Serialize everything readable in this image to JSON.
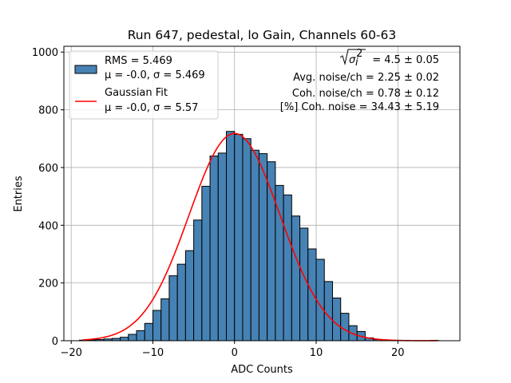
{
  "chart_data": {
    "type": "bar",
    "title": "Run 647, pedestal, lo Gain, Channels 60-63",
    "xlabel": "ADC Counts",
    "ylabel": "Entries",
    "xlim": [
      -20.9,
      27.6
    ],
    "ylim": [
      0,
      1020
    ],
    "x_ticks": [
      -20,
      -10,
      0,
      10,
      20
    ],
    "x_tick_labels": [
      "−20",
      "−10",
      "0",
      "10",
      "20"
    ],
    "y_ticks": [
      0,
      200,
      400,
      600,
      800,
      1000
    ],
    "y_tick_labels": [
      "0",
      "200",
      "400",
      "600",
      "800",
      "1000"
    ],
    "grid": true,
    "legend_placement": "upper-left",
    "bar_color": "#4682b4",
    "fit_color": "#ff0000",
    "histogram": {
      "bin_width": 1,
      "bin_lefts": [
        -20,
        -19,
        -18,
        -17,
        -16,
        -15,
        -14,
        -13,
        -12,
        -11,
        -10,
        -9,
        -8,
        -7,
        -6,
        -5,
        -4,
        -3,
        -2,
        -1,
        0,
        1,
        2,
        3,
        4,
        5,
        6,
        7,
        8,
        9,
        10,
        11,
        12,
        13,
        14,
        15,
        16,
        17,
        18,
        19,
        20,
        21,
        22,
        23,
        24
      ],
      "counts": [
        0,
        2,
        3,
        4,
        6,
        8,
        12,
        22,
        35,
        60,
        105,
        145,
        225,
        265,
        312,
        418,
        535,
        640,
        650,
        725,
        715,
        700,
        660,
        648,
        620,
        538,
        505,
        432,
        390,
        318,
        282,
        205,
        148,
        95,
        52,
        32,
        10,
        4,
        2,
        1,
        0,
        0,
        0,
        0,
        1
      ]
    },
    "gaussian_fit": {
      "mu": 0.0,
      "sigma": 5.57,
      "amplitude": 718,
      "x_range": [
        -18.6,
        24.8
      ]
    },
    "legend": [
      {
        "kind": "patch",
        "line1": "RMS = 5.469",
        "line2": "μ = -0.0, σ = 5.469"
      },
      {
        "kind": "line",
        "line1": "Gaussian Fit",
        "line2": "μ = -0.0, σ = 5.57"
      }
    ],
    "annotations": {
      "sqrt_eq": " = 4.5 ± 0.05",
      "sigma_symbol": "σ",
      "sub_i": "i",
      "sup_2": "2",
      "avg_noise": "Avg. noise/ch = 2.25 ± 0.02",
      "coh_noise": "Coh. noise/ch = 0.78 ± 0.12",
      "pct_coh_noise": "[%] Coh. noise = 34.43 ± 5.19"
    }
  }
}
